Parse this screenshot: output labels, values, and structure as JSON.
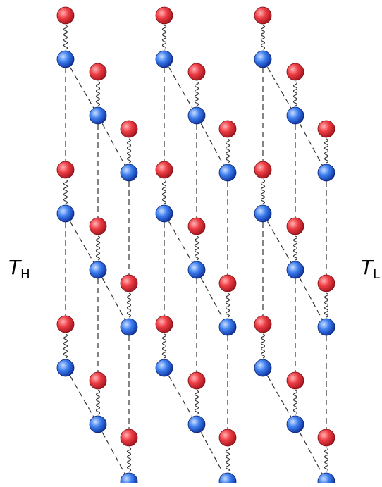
{
  "labels": {
    "hot_symbol": "T",
    "hot_subscript": "H",
    "cold_symbol": "T",
    "cold_subscript": "L"
  },
  "diagram": {
    "description_free": true,
    "groups": 3,
    "columns_per_group": 3,
    "dimers_per_column": 3,
    "colors": {
      "top_atom": "#e8333b",
      "bottom_atom": "#2f6fe0",
      "spring": "#333333",
      "bond_line": "#333333"
    }
  }
}
